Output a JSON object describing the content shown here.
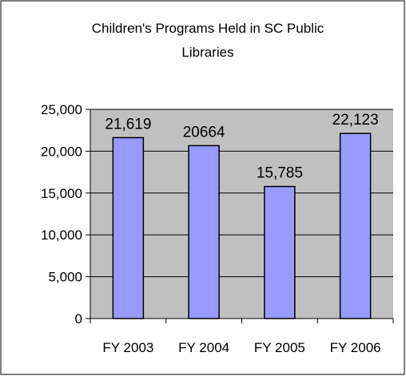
{
  "chart_data": {
    "type": "bar",
    "title_lines": [
      "Children's Programs Held in SC Public",
      "Libraries"
    ],
    "categories": [
      "FY 2003",
      "FY 2004",
      "FY 2005",
      "FY 2006"
    ],
    "values": [
      21619,
      20664,
      15785,
      22123
    ],
    "data_labels": [
      "21,619",
      "20664",
      "15,785",
      "22,123"
    ],
    "ylim": [
      0,
      25000
    ],
    "yticks": [
      0,
      5000,
      10000,
      15000,
      20000,
      25000
    ],
    "ytick_labels": [
      "0",
      "5,000",
      "10,000",
      "15,000",
      "20,000",
      "25,000"
    ],
    "grid": true,
    "legend": "none",
    "colors": {
      "bar_fill": "#9999FF",
      "plot_background": "#C0C0C0",
      "bar_stroke": "#000000",
      "gridline": "#000000"
    }
  }
}
